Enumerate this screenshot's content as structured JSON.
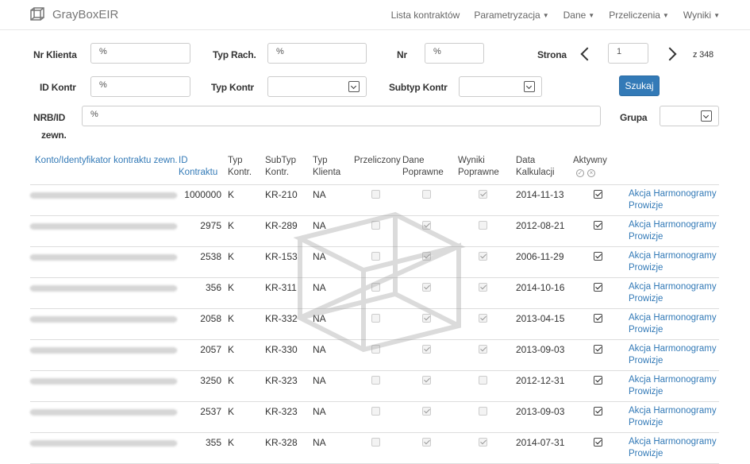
{
  "nav": {
    "brand": "GrayBoxEIR",
    "links": [
      "Lista kontraktów",
      "Parametryzacja",
      "Dane",
      "Przeliczenia",
      "Wyniki"
    ]
  },
  "filters": {
    "nr_klienta": {
      "label": "Nr Klienta",
      "value": "%"
    },
    "typ_rach": {
      "label": "Typ Rach.",
      "value": "%"
    },
    "nr": {
      "label": "Nr",
      "value": "%"
    },
    "strona": {
      "label": "Strona",
      "value": "1",
      "total": "z 348"
    },
    "id_kontr": {
      "label": "ID Kontr",
      "value": "%"
    },
    "typ_kontr": {
      "label": "Typ Kontr",
      "value": ""
    },
    "subtyp_kontr": {
      "label": "Subtyp Kontr",
      "value": ""
    },
    "search_button": "Szukaj",
    "nrb_id": {
      "label_line1": "NRB/ID",
      "label_line2": "zewn.",
      "value": "%"
    },
    "grupa": {
      "label": "Grupa",
      "value": ""
    }
  },
  "table": {
    "headers": {
      "konto": "Konto/Identyfikator kontraktu zewn.",
      "id_line1": "ID",
      "id_line2": "Kontraktu",
      "typ_line1": "Typ",
      "typ_line2": "Kontr.",
      "subtyp_line1": "SubTyp",
      "subtyp_line2": "Kontr.",
      "typklienta_line1": "Typ",
      "typklienta_line2": "Klienta",
      "przeliczony": "Przeliczony",
      "dane_line1": "Dane",
      "dane_line2": "Poprawne",
      "wyniki_line1": "Wyniki",
      "wyniki_line2": "Poprawne",
      "data_line1": "Data",
      "data_line2": "Kalkulacji",
      "aktywny": "Aktywny"
    },
    "action_line1": "Akcja Harmonogramy",
    "action_line2": "Prowizje",
    "rows": [
      {
        "id": "1000000",
        "typ": "K",
        "subtyp": "KR-210",
        "typ_klienta": "NA",
        "przeliczony": false,
        "dane": false,
        "wyniki": true,
        "data": "2014-11-13",
        "aktywny": true
      },
      {
        "id": "2975",
        "typ": "K",
        "subtyp": "KR-289",
        "typ_klienta": "NA",
        "przeliczony": false,
        "dane": true,
        "wyniki": false,
        "data": "2012-08-21",
        "aktywny": true
      },
      {
        "id": "2538",
        "typ": "K",
        "subtyp": "KR-153",
        "typ_klienta": "NA",
        "przeliczony": false,
        "dane": true,
        "wyniki": true,
        "data": "2006-11-29",
        "aktywny": true
      },
      {
        "id": "356",
        "typ": "K",
        "subtyp": "KR-311",
        "typ_klienta": "NA",
        "przeliczony": false,
        "dane": true,
        "wyniki": true,
        "data": "2014-10-16",
        "aktywny": true
      },
      {
        "id": "2058",
        "typ": "K",
        "subtyp": "KR-332",
        "typ_klienta": "NA",
        "przeliczony": false,
        "dane": true,
        "wyniki": true,
        "data": "2013-04-15",
        "aktywny": true
      },
      {
        "id": "2057",
        "typ": "K",
        "subtyp": "KR-330",
        "typ_klienta": "NA",
        "przeliczony": false,
        "dane": true,
        "wyniki": true,
        "data": "2013-09-03",
        "aktywny": true
      },
      {
        "id": "3250",
        "typ": "K",
        "subtyp": "KR-323",
        "typ_klienta": "NA",
        "przeliczony": false,
        "dane": true,
        "wyniki": false,
        "data": "2012-12-31",
        "aktywny": true
      },
      {
        "id": "2537",
        "typ": "K",
        "subtyp": "KR-323",
        "typ_klienta": "NA",
        "przeliczony": false,
        "dane": true,
        "wyniki": false,
        "data": "2013-09-03",
        "aktywny": true
      },
      {
        "id": "355",
        "typ": "K",
        "subtyp": "KR-328",
        "typ_klienta": "NA",
        "przeliczony": false,
        "dane": true,
        "wyniki": true,
        "data": "2014-07-31",
        "aktywny": true
      }
    ]
  },
  "colors": {
    "link": "#337ab7",
    "button": "#337ab7"
  }
}
